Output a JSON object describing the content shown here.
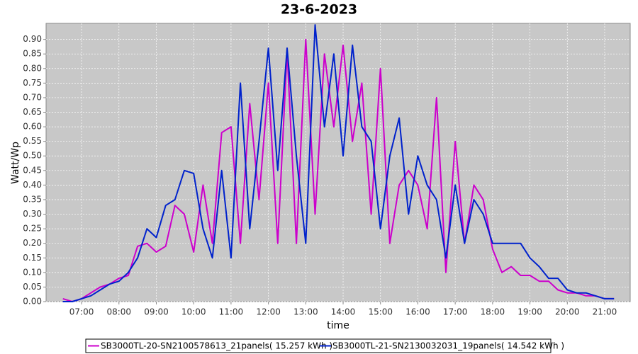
{
  "chart_data": {
    "type": "line",
    "title": "23-6-2023",
    "x_label": "time",
    "y_label": "Watt/Wp",
    "x": [
      "06:30",
      "06:45",
      "07:00",
      "07:15",
      "07:30",
      "07:45",
      "08:00",
      "08:15",
      "08:30",
      "08:45",
      "09:00",
      "09:15",
      "09:30",
      "09:45",
      "10:00",
      "10:15",
      "10:30",
      "10:45",
      "11:00",
      "11:15",
      "11:30",
      "11:45",
      "12:00",
      "12:15",
      "12:30",
      "12:45",
      "13:00",
      "13:15",
      "13:30",
      "13:45",
      "14:00",
      "14:15",
      "14:30",
      "14:45",
      "15:00",
      "15:15",
      "15:30",
      "15:45",
      "16:00",
      "16:15",
      "16:30",
      "16:45",
      "17:00",
      "17:15",
      "17:30",
      "17:45",
      "18:00",
      "18:15",
      "18:30",
      "18:45",
      "19:00",
      "19:15",
      "19:30",
      "19:45",
      "20:00",
      "20:15",
      "20:30",
      "20:45",
      "21:00",
      "21:15"
    ],
    "series": [
      {
        "name": "SB3000TL-20-SN2100578613_21panels( 15.257 kWh )",
        "color": "#cc00cc",
        "values": [
          0.01,
          0.0,
          0.01,
          0.03,
          0.05,
          0.06,
          0.08,
          0.09,
          0.19,
          0.2,
          0.17,
          0.19,
          0.33,
          0.3,
          0.17,
          0.4,
          0.2,
          0.58,
          0.6,
          0.2,
          0.68,
          0.35,
          0.75,
          0.2,
          0.86,
          0.2,
          0.9,
          0.3,
          0.85,
          0.6,
          0.88,
          0.55,
          0.75,
          0.3,
          0.8,
          0.2,
          0.4,
          0.45,
          0.4,
          0.25,
          0.7,
          0.1,
          0.55,
          0.2,
          0.4,
          0.35,
          0.18,
          0.1,
          0.12,
          0.09,
          0.09,
          0.07,
          0.07,
          0.04,
          0.03,
          0.03,
          0.02,
          0.02,
          0.01,
          0.01
        ]
      },
      {
        "name": "SB3000TL-21-SN2130032031_19panels( 14.542 kWh )",
        "color": "#0022cc",
        "values": [
          0.0,
          0.0,
          0.01,
          0.02,
          0.04,
          0.06,
          0.07,
          0.1,
          0.15,
          0.25,
          0.22,
          0.33,
          0.35,
          0.45,
          0.44,
          0.25,
          0.15,
          0.45,
          0.15,
          0.75,
          0.25,
          0.55,
          0.87,
          0.45,
          0.87,
          0.5,
          0.2,
          0.95,
          0.6,
          0.85,
          0.5,
          0.88,
          0.6,
          0.55,
          0.25,
          0.5,
          0.63,
          0.3,
          0.5,
          0.4,
          0.35,
          0.15,
          0.4,
          0.2,
          0.35,
          0.3,
          0.2,
          0.2,
          0.2,
          0.2,
          0.15,
          0.12,
          0.08,
          0.08,
          0.04,
          0.03,
          0.03,
          0.02,
          0.01,
          0.01
        ]
      }
    ],
    "xlim": [
      "06:03",
      "21:41"
    ],
    "xticks": [
      "07:00",
      "08:00",
      "09:00",
      "10:00",
      "11:00",
      "12:00",
      "13:00",
      "14:00",
      "15:00",
      "16:00",
      "17:00",
      "18:00",
      "19:00",
      "20:00",
      "21:00"
    ],
    "ylim": [
      0,
      0.955
    ],
    "yticks": [
      {
        "value": 0,
        "label": "0.00"
      },
      {
        "value": 0.05,
        "label": "0.05"
      },
      {
        "value": 0.1,
        "label": "0.10"
      },
      {
        "value": 0.15,
        "label": "0.15"
      },
      {
        "value": 0.2,
        "label": "0.20"
      },
      {
        "value": 0.25,
        "label": "0.25"
      },
      {
        "value": 0.3,
        "label": "0.30"
      },
      {
        "value": 0.35,
        "label": "0.35"
      },
      {
        "value": 0.4,
        "label": "0.40"
      },
      {
        "value": 0.45,
        "label": "0.45"
      },
      {
        "value": 0.5,
        "label": "0.50"
      },
      {
        "value": 0.55,
        "label": "0.55"
      },
      {
        "value": 0.6,
        "label": "0.60"
      },
      {
        "value": 0.65,
        "label": "0.65"
      },
      {
        "value": 0.7,
        "label": "0.70"
      },
      {
        "value": 0.75,
        "label": "0.75"
      },
      {
        "value": 0.8,
        "label": "0.80"
      },
      {
        "value": 0.85,
        "label": "0.85"
      },
      {
        "value": 0.9,
        "label": "0.90"
      }
    ],
    "grid": true
  }
}
